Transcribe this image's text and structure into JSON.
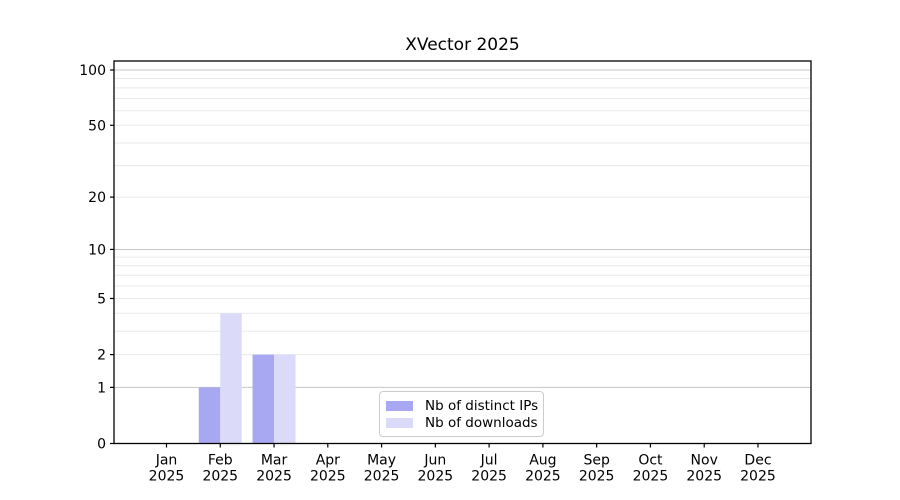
{
  "chart_data": {
    "type": "bar",
    "title": "XVector 2025",
    "categories": [
      "Jan 2025",
      "Feb 2025",
      "Mar 2025",
      "Apr 2025",
      "May 2025",
      "Jun 2025",
      "Jul 2025",
      "Aug 2025",
      "Sep 2025",
      "Oct 2025",
      "Nov 2025",
      "Dec 2025"
    ],
    "series": [
      {
        "name": "Nb of distinct IPs",
        "color": "#a8a8f2",
        "values": [
          0,
          1,
          2,
          0,
          0,
          0,
          0,
          0,
          0,
          0,
          0,
          0
        ]
      },
      {
        "name": "Nb of downloads",
        "color": "#dbdbf9",
        "values": [
          0,
          4,
          2,
          0,
          0,
          0,
          0,
          0,
          0,
          0,
          0,
          0
        ]
      }
    ],
    "y_axis": {
      "scale": "log10(value+1)",
      "tick_labels": [
        0,
        1,
        2,
        5,
        10,
        20,
        50,
        100
      ],
      "major_gridlines": [
        1,
        10,
        100
      ],
      "minor_gridlines": [
        2,
        3,
        4,
        5,
        6,
        7,
        8,
        9,
        20,
        30,
        40,
        50,
        60,
        70,
        80,
        90
      ],
      "range": [
        0,
        112
      ]
    },
    "x_axis": {
      "label_lines": 2
    },
    "legend": {
      "position": "lower center",
      "border_color": "#cccccc"
    },
    "grid": true,
    "colors": {
      "grid_major": "#c6c6c6",
      "grid_minor": "#eaeaea",
      "axis": "#000000",
      "background": "#ffffff",
      "text": "#000000"
    }
  }
}
